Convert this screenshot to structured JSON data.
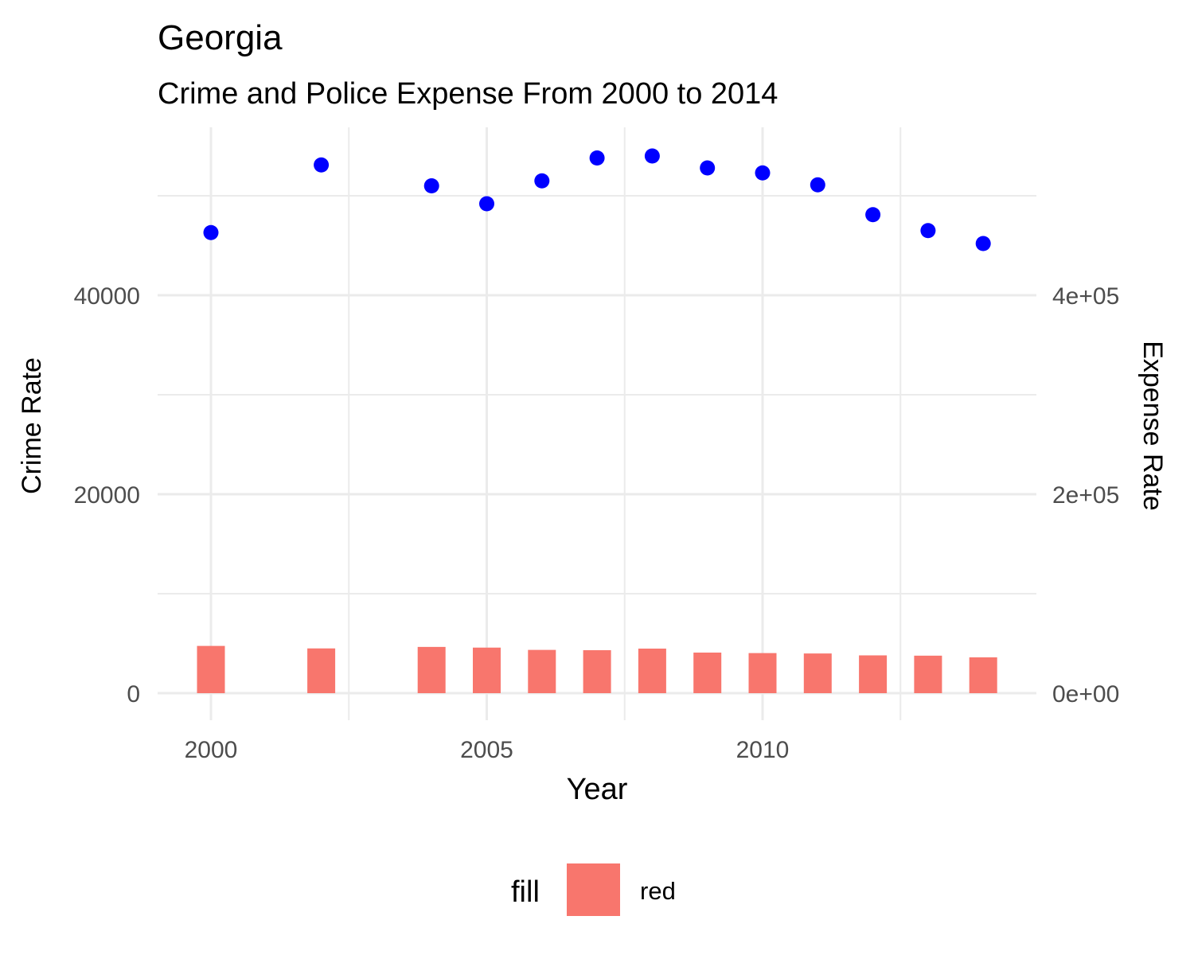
{
  "chart_data": {
    "type": "bar+scatter",
    "title": "Georgia",
    "subtitle": "Crime and Police Expense From 2000 to 2014",
    "xlabel": "Year",
    "ylabel_left": "Crime Rate",
    "ylabel_right": "Expense Rate",
    "x_ticks": [
      2000,
      2005,
      2010
    ],
    "x_tick_labels": [
      "2000",
      "2005",
      "2010"
    ],
    "x_minor": [
      2002.5,
      2007.5,
      2012.5
    ],
    "xlim": [
      1999,
      2015
    ],
    "y_left_ticks": [
      0,
      20000,
      40000
    ],
    "y_left_tick_labels": [
      "0",
      "20000",
      "40000"
    ],
    "y_left_minor": [
      10000,
      30000,
      50000
    ],
    "y_left_range": [
      0,
      55000
    ],
    "y_right_ticks": [
      0,
      200000,
      400000
    ],
    "y_right_tick_labels": [
      "0e+00",
      "2e+05",
      "4e+05"
    ],
    "y_right_range": [
      0,
      550000
    ],
    "grid": true,
    "legend_position": "bottom",
    "legend": {
      "title": "fill",
      "entries": [
        {
          "label": "red",
          "color": "#F8766D"
        }
      ]
    },
    "colors": {
      "bars": "#F8766D",
      "points": "#0000FF",
      "left_axis_title": "#FF0000",
      "right_axis_title": "#0000FF"
    },
    "series": [
      {
        "name": "Crime Rate",
        "axis": "left",
        "mark": "bar",
        "x": [
          2000,
          2002,
          2004,
          2005,
          2006,
          2007,
          2008,
          2009,
          2010,
          2011,
          2012,
          2013,
          2014
        ],
        "values": [
          4750,
          4500,
          4650,
          4580,
          4350,
          4320,
          4480,
          4080,
          4030,
          3990,
          3800,
          3770,
          3600
        ]
      },
      {
        "name": "Expense Rate",
        "axis": "right",
        "mark": "point",
        "x": [
          2000,
          2002,
          2004,
          2005,
          2006,
          2007,
          2008,
          2009,
          2010,
          2011,
          2012,
          2013,
          2014
        ],
        "values": [
          463000,
          531000,
          510000,
          492000,
          515000,
          538000,
          540000,
          528000,
          523000,
          511000,
          481000,
          465000,
          452000
        ]
      }
    ]
  }
}
